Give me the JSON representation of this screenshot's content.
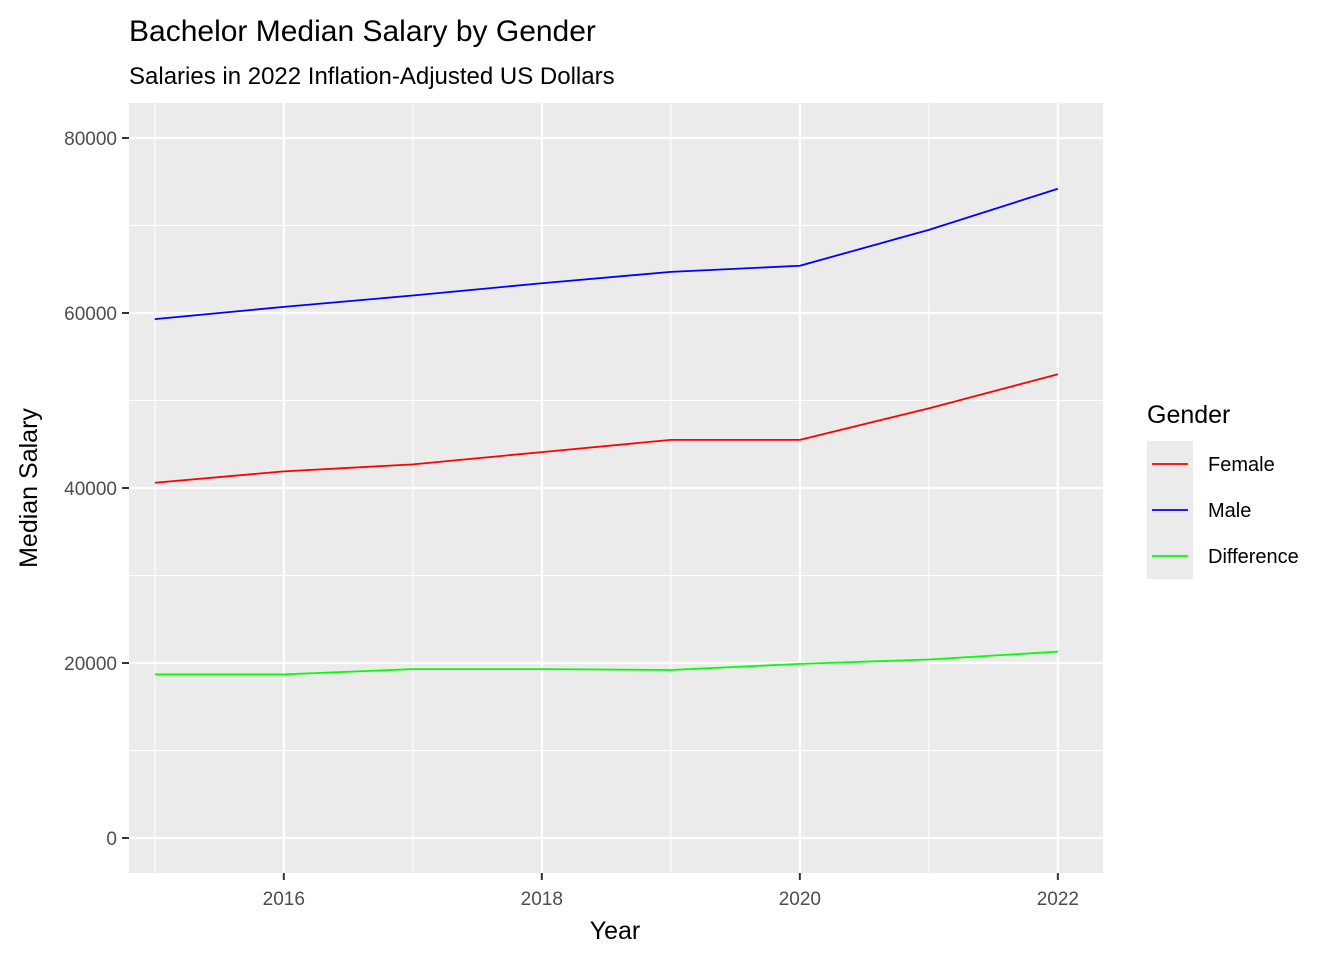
{
  "chart_data": {
    "type": "line",
    "title": "Bachelor Median Salary by Gender",
    "subtitle": "Salaries in 2022 Inflation-Adjusted US Dollars",
    "xlabel": "Year",
    "ylabel": "Median Salary",
    "x": [
      2015,
      2016,
      2017,
      2018,
      2019,
      2020,
      2021,
      2022
    ],
    "xlim": [
      2014.8,
      2022.35
    ],
    "ylim": [
      -4000,
      84000
    ],
    "x_ticks": [
      "2016",
      "2018",
      "2020",
      "2022"
    ],
    "y_ticks": [
      "0",
      "20000",
      "40000",
      "60000",
      "80000"
    ],
    "grid": true,
    "panel_background": "#ebebeb",
    "legend_position": "right",
    "legend_title": "Gender",
    "series": [
      {
        "name": "Female",
        "color": "#ff0000",
        "values": [
          40600,
          41900,
          42700,
          44100,
          45500,
          45500,
          49100,
          53000
        ]
      },
      {
        "name": "Male",
        "color": "#0000ff",
        "values": [
          59300,
          60700,
          62000,
          63400,
          64700,
          65400,
          69500,
          74200
        ]
      },
      {
        "name": "Difference",
        "color": "#00ff00",
        "values": [
          18700,
          18700,
          19300,
          19300,
          19200,
          19900,
          20400,
          21300
        ]
      }
    ]
  }
}
